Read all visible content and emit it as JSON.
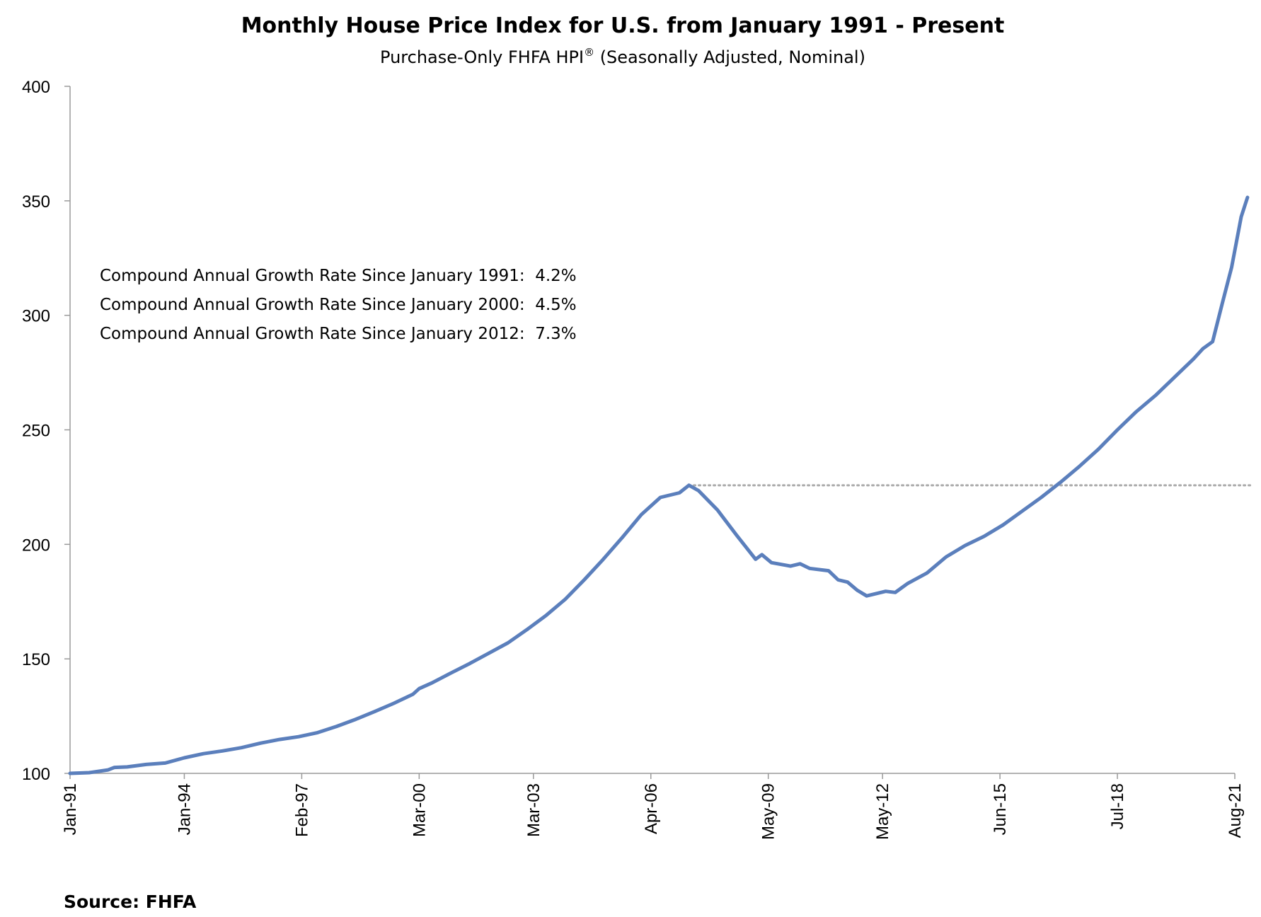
{
  "chart_data": {
    "type": "line",
    "title": "Monthly House Price Index for U.S. from January 1991 - Present",
    "subtitle": {
      "text": "Purchase-Only FHFA HPI",
      "mark": "®",
      "suffix": " (Seasonally Adjusted, Nominal)"
    },
    "ylim": [
      100,
      400
    ],
    "yticks": [
      "100",
      "150",
      "200",
      "250",
      "300",
      "350",
      "400"
    ],
    "xticks": [
      {
        "label": "Jan-91",
        "x": "1991-01"
      },
      {
        "label": "Jan-94",
        "x": "1994-01"
      },
      {
        "label": "Feb-97",
        "x": "1997-02"
      },
      {
        "label": "Mar-00",
        "x": "2000-03"
      },
      {
        "label": "Mar-03",
        "x": "2003-03"
      },
      {
        "label": "Apr-06",
        "x": "2006-04"
      },
      {
        "label": "May-09",
        "x": "2009-05"
      },
      {
        "label": "May-12",
        "x": "2012-05"
      },
      {
        "label": "Jun-15",
        "x": "2015-06"
      },
      {
        "label": "Jul-18",
        "x": "2018-07"
      },
      {
        "label": "Aug-21",
        "x": "2021-08"
      }
    ],
    "x_range": [
      "1991-01",
      "2021-08"
    ],
    "series": [
      {
        "color": "#5B7FBC",
        "points": [
          [
            "1991-01",
            100.0
          ],
          [
            "1991-07",
            100.3
          ],
          [
            "1992-01",
            101.5
          ],
          [
            "1992-03",
            102.6
          ],
          [
            "1992-07",
            102.8
          ],
          [
            "1993-01",
            103.9
          ],
          [
            "1993-07",
            104.5
          ],
          [
            "1994-01",
            106.8
          ],
          [
            "1994-07",
            108.6
          ],
          [
            "1995-01",
            109.8
          ],
          [
            "1995-07",
            111.2
          ],
          [
            "1996-01",
            113.2
          ],
          [
            "1996-07",
            114.8
          ],
          [
            "1997-01",
            116.0
          ],
          [
            "1997-07",
            117.8
          ],
          [
            "1998-01",
            120.5
          ],
          [
            "1998-07",
            123.6
          ],
          [
            "1999-01",
            127.0
          ],
          [
            "1999-07",
            130.6
          ],
          [
            "2000-01",
            134.5
          ],
          [
            "2000-03",
            137.0
          ],
          [
            "2000-07",
            139.5
          ],
          [
            "2001-01",
            143.8
          ],
          [
            "2001-07",
            148.0
          ],
          [
            "2002-01",
            152.5
          ],
          [
            "2002-07",
            157.0
          ],
          [
            "2003-01",
            162.8
          ],
          [
            "2003-07",
            169.0
          ],
          [
            "2004-01",
            176.0
          ],
          [
            "2004-07",
            184.5
          ],
          [
            "2005-01",
            193.5
          ],
          [
            "2005-07",
            203.0
          ],
          [
            "2006-01",
            213.0
          ],
          [
            "2006-07",
            220.5
          ],
          [
            "2007-01",
            222.5
          ],
          [
            "2007-04",
            225.8
          ],
          [
            "2007-07",
            223.5
          ],
          [
            "2008-01",
            215.0
          ],
          [
            "2008-07",
            204.0
          ],
          [
            "2009-01",
            193.5
          ],
          [
            "2009-03",
            195.5
          ],
          [
            "2009-06",
            192.0
          ],
          [
            "2009-12",
            190.5
          ],
          [
            "2010-03",
            191.5
          ],
          [
            "2010-06",
            189.5
          ],
          [
            "2010-12",
            188.5
          ],
          [
            "2011-03",
            184.5
          ],
          [
            "2011-06",
            183.5
          ],
          [
            "2011-09",
            180.0
          ],
          [
            "2011-12",
            177.5
          ],
          [
            "2012-03",
            178.5
          ],
          [
            "2012-06",
            179.5
          ],
          [
            "2012-09",
            179.0
          ],
          [
            "2013-01",
            183.0
          ],
          [
            "2013-07",
            187.5
          ],
          [
            "2014-01",
            194.5
          ],
          [
            "2014-07",
            199.5
          ],
          [
            "2015-01",
            203.5
          ],
          [
            "2015-07",
            208.5
          ],
          [
            "2016-01",
            214.5
          ],
          [
            "2016-07",
            220.5
          ],
          [
            "2017-01",
            227.0
          ],
          [
            "2017-07",
            234.0
          ],
          [
            "2018-01",
            241.5
          ],
          [
            "2018-07",
            250.0
          ],
          [
            "2019-01",
            258.0
          ],
          [
            "2019-07",
            265.0
          ],
          [
            "2020-01",
            273.0
          ],
          [
            "2020-07",
            281.0
          ],
          [
            "2020-10",
            285.5
          ],
          [
            "2021-01",
            288.5
          ],
          [
            "2021-04",
            305.0
          ],
          [
            "2021-07",
            321.0
          ],
          [
            "2021-10",
            343.0
          ],
          [
            "2021-12",
            351.5
          ]
        ]
      }
    ],
    "reference_line": {
      "y": 225.8,
      "from": "2007-04",
      "style": "dotted",
      "color": "#AAAAAA"
    },
    "annotations": [
      "Compound Annual Growth Rate Since January 1991:  4.2%",
      "Compound Annual Growth Rate Since January 2000:  4.5%",
      "Compound Annual Growth Rate Since January 2012:  7.3%"
    ],
    "grid": false,
    "legend": "none"
  },
  "source": "Source: FHFA"
}
